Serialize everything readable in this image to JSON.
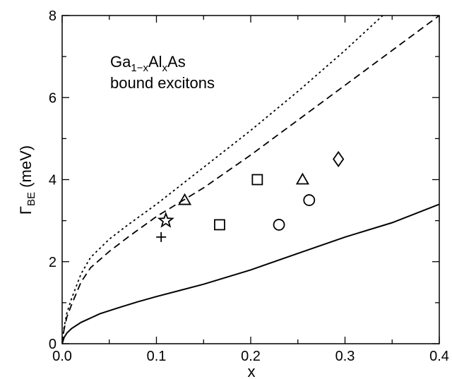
{
  "chart_data": {
    "type": "line",
    "title": "",
    "xlabel": "x",
    "ylabel_main": "Γ",
    "ylabel_sub": "BE",
    "ylabel_unit": "(meV)",
    "xlim": [
      0.0,
      0.4
    ],
    "ylim": [
      0,
      8
    ],
    "xticks": [
      0.0,
      0.1,
      0.2,
      0.3,
      0.4
    ],
    "xtick_labels": [
      "0.0",
      "0.1",
      "0.2",
      "0.3",
      "0.4"
    ],
    "yticks": [
      0,
      2,
      4,
      6,
      8
    ],
    "ytick_labels": [
      "0",
      "2",
      "4",
      "6",
      "8"
    ],
    "grid": false,
    "annotation": {
      "line1_a": "Ga",
      "line1_sub1": "1−x",
      "line1_b": "Al",
      "line1_sub2": "x",
      "line1_c": "As",
      "line2": "bound excitons"
    },
    "series": [
      {
        "style": "solid",
        "x": [
          0.0,
          0.002,
          0.005,
          0.01,
          0.02,
          0.04,
          0.06,
          0.08,
          0.1,
          0.15,
          0.2,
          0.25,
          0.3,
          0.35,
          0.4
        ],
        "y": [
          0.0,
          0.15,
          0.26,
          0.37,
          0.52,
          0.73,
          0.88,
          1.02,
          1.15,
          1.45,
          1.8,
          2.2,
          2.6,
          2.95,
          3.4
        ]
      },
      {
        "style": "dashed",
        "x": [
          0.0,
          0.002,
          0.005,
          0.01,
          0.02,
          0.03,
          0.05,
          0.07,
          0.1,
          0.15,
          0.2,
          0.25,
          0.3,
          0.35,
          0.4
        ],
        "y": [
          0.0,
          0.35,
          0.65,
          0.95,
          1.5,
          1.85,
          2.25,
          2.6,
          3.1,
          3.8,
          4.6,
          5.45,
          6.3,
          7.15,
          8.0
        ]
      },
      {
        "style": "dotted",
        "x": [
          0.0,
          0.002,
          0.005,
          0.01,
          0.02,
          0.03,
          0.05,
          0.07,
          0.1,
          0.15,
          0.2,
          0.25,
          0.3,
          0.34
        ],
        "y": [
          0.0,
          0.4,
          0.75,
          1.1,
          1.7,
          2.1,
          2.55,
          2.9,
          3.4,
          4.3,
          5.2,
          6.15,
          7.15,
          8.0
        ]
      }
    ],
    "markers": [
      {
        "shape": "plus",
        "x": 0.105,
        "y": 2.6
      },
      {
        "shape": "star",
        "x": 0.11,
        "y": 3.0
      },
      {
        "shape": "triangle",
        "x": 0.13,
        "y": 3.5
      },
      {
        "shape": "square",
        "x": 0.167,
        "y": 2.9
      },
      {
        "shape": "square",
        "x": 0.207,
        "y": 4.0
      },
      {
        "shape": "circle",
        "x": 0.23,
        "y": 2.9
      },
      {
        "shape": "triangle",
        "x": 0.255,
        "y": 4.0
      },
      {
        "shape": "circle",
        "x": 0.262,
        "y": 3.5
      },
      {
        "shape": "diamond",
        "x": 0.293,
        "y": 4.5
      }
    ]
  }
}
